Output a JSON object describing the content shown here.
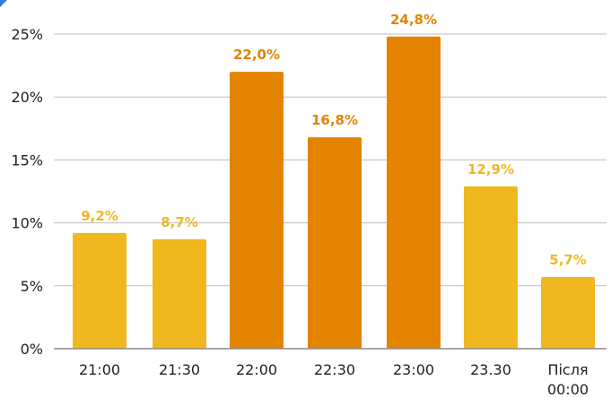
{
  "chart_data": {
    "type": "bar",
    "categories": [
      "21:00",
      "21:30",
      "22:00",
      "22:30",
      "23:00",
      "23.30",
      "Після 00:00"
    ],
    "values": [
      9.2,
      8.7,
      22.0,
      16.8,
      24.8,
      12.9,
      5.7
    ],
    "data_labels": [
      "9,2%",
      "8,7%",
      "22,0%",
      "16,8%",
      "24,8%",
      "12,9%",
      "5,7%"
    ],
    "y_ticks": [
      0,
      5,
      10,
      15,
      20,
      25
    ],
    "y_tick_labels": [
      "0%",
      "5%",
      "10%",
      "15%",
      "20%",
      "25%"
    ],
    "ylim": [
      0,
      25
    ],
    "grid": true,
    "colors": {
      "light": "#f0b81e",
      "dark": "#e38300",
      "grid": "#bdbdbd",
      "axis": "#8c8c8c",
      "corner": "#2f7ed8"
    },
    "bar_color_keys": [
      "light",
      "light",
      "dark",
      "dark",
      "dark",
      "light",
      "light"
    ]
  }
}
